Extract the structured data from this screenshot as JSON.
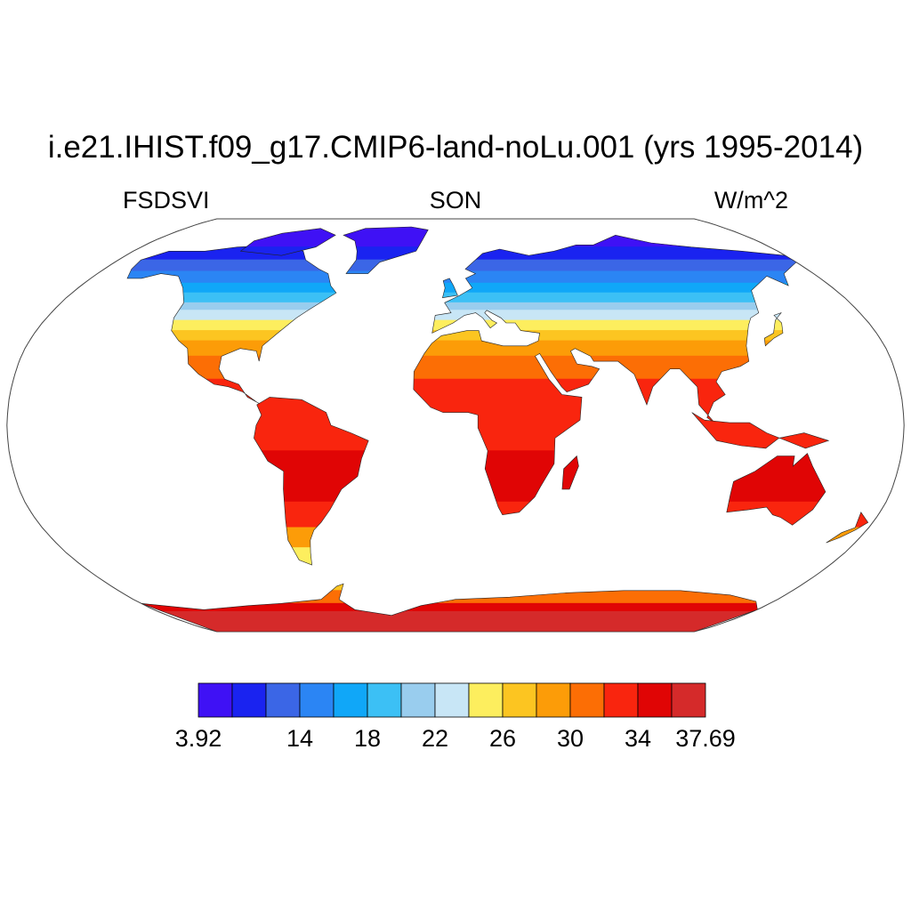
{
  "figure": {
    "title": "i.e21.IHIST.f09_g17.CMIP6-land-noLu.001 (yrs 1995-2014)",
    "left_label": "FSDSVI",
    "center_label": "SON",
    "right_label": "W/m^2"
  },
  "map": {
    "projection": "robinson",
    "ocean_color": "#ffffff",
    "outline_color": "#444444"
  },
  "colorbar": {
    "colors": [
      "#3f11f5",
      "#1a23f0",
      "#3b66e6",
      "#2b85f4",
      "#10a7f8",
      "#3cc0f5",
      "#99cdee",
      "#c8e6f6",
      "#fdee5e",
      "#fcc521",
      "#fc9c08",
      "#fc6e05",
      "#f9250e",
      "#e00505",
      "#d52a2a"
    ],
    "labels": [
      "3.92",
      "14",
      "18",
      "22",
      "26",
      "30",
      "34",
      "37.69"
    ],
    "label_positions": [
      0,
      3,
      5,
      7,
      9,
      11,
      13,
      15
    ]
  }
}
